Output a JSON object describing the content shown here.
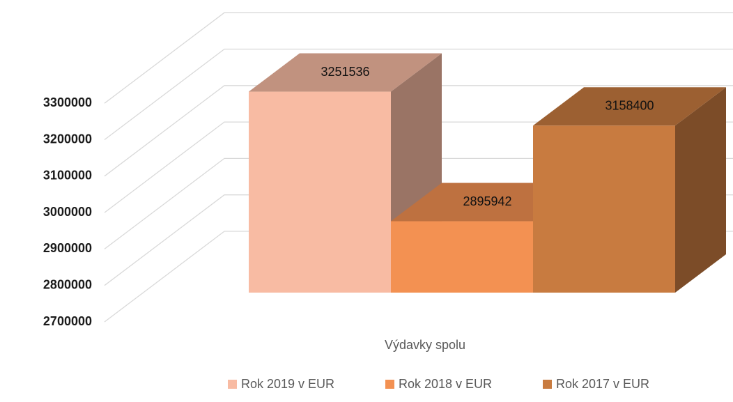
{
  "chart_data": {
    "type": "bar3d",
    "categories": [
      "Výdavky spolu"
    ],
    "series": [
      {
        "name": "Rok 2019 v EUR",
        "color": "#f8bba3",
        "values": [
          3251536
        ]
      },
      {
        "name": "Rok 2018 v EUR",
        "color": "#f39152",
        "values": [
          2895942
        ]
      },
      {
        "name": "Rok 2017 v EUR",
        "color": "#c87b40",
        "values": [
          3158400
        ]
      }
    ],
    "ylim": [
      2700000,
      3300000
    ],
    "yticks": [
      2700000,
      2800000,
      2900000,
      3000000,
      3100000,
      3200000,
      3300000
    ],
    "grid": true,
    "legend": "bottom"
  }
}
